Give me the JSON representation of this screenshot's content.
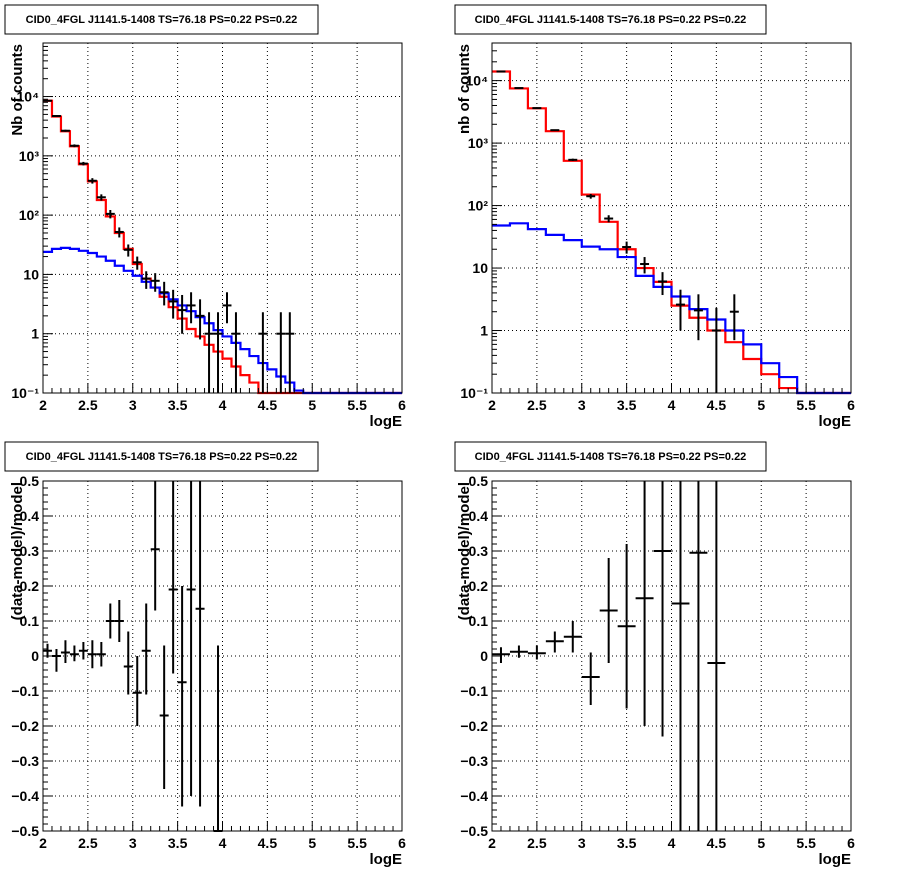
{
  "chart_data": [
    {
      "id": "top-left",
      "type": "histogram-log",
      "title": "CID0_4FGL J1141.5-1408 TS=76.18 PS=0.22 PS=0.22",
      "xlabel": "logE",
      "ylabel": "Nb of counts",
      "xlim": [
        2,
        6
      ],
      "ylim": [
        0.1,
        80000
      ],
      "log_y": true,
      "grid": true,
      "xticks": [
        2,
        2.5,
        3,
        3.5,
        4,
        4.5,
        5,
        5.5,
        6
      ],
      "xtick_labels": [
        "2",
        "2.5",
        "3",
        "3.5",
        "4",
        "4.5",
        "5",
        "5.5",
        "6"
      ],
      "yticks": [
        0.1,
        1,
        10,
        100,
        1000,
        10000
      ],
      "ytick_labels": [
        "10⁻¹",
        "1",
        "10",
        "10²",
        "10³",
        "10⁴"
      ],
      "bin_edges": [
        2.0,
        2.1,
        2.2,
        2.3,
        2.4,
        2.5,
        2.6,
        2.7,
        2.8,
        2.9,
        3.0,
        3.1,
        3.2,
        3.3,
        3.4,
        3.5,
        3.6,
        3.7,
        3.8,
        3.9,
        4.0,
        4.1,
        4.2,
        4.3,
        4.4,
        4.5,
        4.6,
        4.7,
        4.8,
        4.9,
        5.0,
        5.1,
        5.2,
        5.3,
        5.4,
        5.5,
        5.6,
        5.7,
        5.8,
        5.9,
        6.0
      ],
      "series": [
        {
          "style": "step",
          "color": "#ff0000",
          "values": [
            8500,
            4600,
            2600,
            1450,
            720,
            370,
            180,
            95,
            50,
            27,
            15,
            8.5,
            6,
            4.2,
            2.8,
            1.8,
            1.2,
            0.9,
            0.65,
            0.5,
            0.38,
            0.28,
            0.2,
            0.15,
            0.1,
            0.1,
            0.1,
            0.1,
            0.1,
            0.1,
            0.1,
            0.1,
            0.1,
            0.1,
            0.1,
            0.1,
            0.1,
            0.1,
            0.1,
            0.1
          ]
        },
        {
          "style": "step",
          "color": "#0000ff",
          "values": [
            24,
            27,
            28,
            27,
            25,
            23,
            20,
            17,
            14,
            11.5,
            9.5,
            7.5,
            6,
            4.8,
            3.8,
            3.0,
            2.4,
            1.9,
            1.5,
            1.15,
            0.9,
            0.7,
            0.55,
            0.42,
            0.32,
            0.25,
            0.19,
            0.15,
            0.11,
            0.1,
            0.1,
            0.1,
            0.1,
            0.1,
            0.1,
            0.1,
            0.1,
            0.1,
            0.1,
            0.1
          ]
        },
        {
          "style": "errorbar",
          "color": "#000000",
          "points": [
            {
              "x": 2.05,
              "y": 8500,
              "lo": 8320,
              "hi": 8680
            },
            {
              "x": 2.15,
              "y": 4700,
              "lo": 4560,
              "hi": 4840
            },
            {
              "x": 2.25,
              "y": 2650,
              "lo": 2550,
              "hi": 2750
            },
            {
              "x": 2.35,
              "y": 1480,
              "lo": 1400,
              "hi": 1560
            },
            {
              "x": 2.45,
              "y": 740,
              "lo": 690,
              "hi": 790
            },
            {
              "x": 2.55,
              "y": 380,
              "lo": 340,
              "hi": 420
            },
            {
              "x": 2.65,
              "y": 200,
              "lo": 176,
              "hi": 224
            },
            {
              "x": 2.75,
              "y": 105,
              "lo": 88,
              "hi": 122
            },
            {
              "x": 2.85,
              "y": 52,
              "lo": 42,
              "hi": 62
            },
            {
              "x": 2.95,
              "y": 26,
              "lo": 20,
              "hi": 32
            },
            {
              "x": 3.05,
              "y": 16,
              "lo": 12,
              "hi": 20
            },
            {
              "x": 3.15,
              "y": 8.5,
              "lo": 5.7,
              "hi": 11.3
            },
            {
              "x": 3.25,
              "y": 7.8,
              "lo": 5.1,
              "hi": 10.5
            },
            {
              "x": 3.35,
              "y": 5,
              "lo": 3,
              "hi": 7.5
            },
            {
              "x": 3.45,
              "y": 3.5,
              "lo": 1.8,
              "hi": 5.5
            },
            {
              "x": 3.55,
              "y": 2.5,
              "lo": 1,
              "hi": 4.5
            },
            {
              "x": 3.65,
              "y": 3,
              "lo": 1.5,
              "hi": 5
            },
            {
              "x": 3.75,
              "y": 2,
              "lo": 0.8,
              "hi": 3.8
            },
            {
              "x": 3.85,
              "y": 1,
              "lo": 0.1,
              "hi": 2.3
            },
            {
              "x": 3.95,
              "y": 1,
              "lo": 0.1,
              "hi": 2.3
            },
            {
              "x": 4.05,
              "y": 3,
              "lo": 1.5,
              "hi": 5
            },
            {
              "x": 4.15,
              "y": 1,
              "lo": 0.1,
              "hi": 2.3
            },
            {
              "x": 4.45,
              "y": 1,
              "lo": 0.1,
              "hi": 2.3
            },
            {
              "x": 4.65,
              "y": 1,
              "lo": 0.1,
              "hi": 2.3
            },
            {
              "x": 4.75,
              "y": 1,
              "lo": 0.1,
              "hi": 2.3
            }
          ]
        }
      ]
    },
    {
      "id": "top-right",
      "type": "histogram-log",
      "title": "CID0_4FGL J1141.5-1408 TS=76.18 PS=0.22 PS=0.22",
      "xlabel": "logE",
      "ylabel": "nb of counts",
      "xlim": [
        2,
        6
      ],
      "ylim": [
        0.1,
        40000
      ],
      "log_y": true,
      "grid": true,
      "xticks": [
        2,
        2.5,
        3,
        3.5,
        4,
        4.5,
        5,
        5.5,
        6
      ],
      "xtick_labels": [
        "2",
        "2.5",
        "3",
        "3.5",
        "4",
        "4.5",
        "5",
        "5.5",
        "6"
      ],
      "yticks": [
        0.1,
        1,
        10,
        100,
        1000,
        10000
      ],
      "ytick_labels": [
        "10⁻¹",
        "1",
        "10",
        "10²",
        "10³",
        "10⁴"
      ],
      "bin_edges": [
        2.0,
        2.2,
        2.4,
        2.6,
        2.8,
        3.0,
        3.2,
        3.4,
        3.6,
        3.8,
        4.0,
        4.2,
        4.4,
        4.6,
        4.8,
        5.0,
        5.2,
        5.4,
        5.6,
        5.8,
        6.0
      ],
      "series": [
        {
          "style": "step",
          "color": "#ff0000",
          "values": [
            14000,
            7500,
            3600,
            1550,
            520,
            150,
            55,
            20,
            10,
            6,
            2.5,
            1.6,
            1.0,
            0.65,
            0.35,
            0.2,
            0.12,
            0.1,
            0.1,
            0.1
          ]
        },
        {
          "style": "step",
          "color": "#0000ff",
          "values": [
            48,
            52,
            42,
            34,
            28,
            22,
            20,
            15,
            7.5,
            5,
            3.5,
            2.2,
            1.5,
            1.0,
            0.6,
            0.3,
            0.18,
            0.1,
            0.1,
            0.1
          ]
        },
        {
          "style": "errorbar",
          "color": "#000000",
          "points": [
            {
              "x": 2.1,
              "y": 14000,
              "lo": 13880,
              "hi": 14120
            },
            {
              "x": 2.3,
              "y": 7600,
              "lo": 7510,
              "hi": 7690
            },
            {
              "x": 2.5,
              "y": 3630,
              "lo": 3570,
              "hi": 3690
            },
            {
              "x": 2.7,
              "y": 1610,
              "lo": 1570,
              "hi": 1650
            },
            {
              "x": 2.9,
              "y": 540,
              "lo": 517,
              "hi": 563
            },
            {
              "x": 3.1,
              "y": 141,
              "lo": 129,
              "hi": 153
            },
            {
              "x": 3.3,
              "y": 62,
              "lo": 54,
              "hi": 70
            },
            {
              "x": 3.5,
              "y": 21.7,
              "lo": 17,
              "hi": 26.5
            },
            {
              "x": 3.7,
              "y": 11.6,
              "lo": 8.2,
              "hi": 15
            },
            {
              "x": 3.9,
              "y": 6.1,
              "lo": 3.7,
              "hi": 8.6
            },
            {
              "x": 4.1,
              "y": 2.6,
              "lo": 1,
              "hi": 4.5
            },
            {
              "x": 4.3,
              "y": 2.1,
              "lo": 0.7,
              "hi": 3.8
            },
            {
              "x": 4.5,
              "y": 1,
              "lo": 0.1,
              "hi": 2.3
            },
            {
              "x": 4.7,
              "y": 2,
              "lo": 0.7,
              "hi": 3.8
            }
          ]
        }
      ]
    },
    {
      "id": "bottom-left",
      "type": "errorbar",
      "title": "CID0_4FGL J1141.5-1408 TS=76.18 PS=0.22 PS=0.22",
      "xlabel": "logE",
      "ylabel": "(data-model)/model",
      "xlim": [
        2,
        6
      ],
      "ylim": [
        -0.5,
        0.5
      ],
      "log_y": false,
      "grid": true,
      "xticks": [
        2,
        2.5,
        3,
        3.5,
        4,
        4.5,
        5,
        5.5,
        6
      ],
      "xtick_labels": [
        "2",
        "2.5",
        "3",
        "3.5",
        "4",
        "4.5",
        "5",
        "5.5",
        "6"
      ],
      "yticks": [
        -0.5,
        -0.4,
        -0.3,
        -0.2,
        -0.1,
        0,
        0.1,
        0.2,
        0.3,
        0.4,
        0.5
      ],
      "ytick_labels": [
        "−0.5",
        "−0.4",
        "−0.3",
        "−0.2",
        "−0.1",
        "0",
        "0.1",
        "0.2",
        "0.3",
        "0.4",
        "0.5"
      ],
      "series": [
        {
          "style": "errorbar",
          "color": "#000000",
          "xerr": 0.05,
          "points": [
            {
              "x": 2.05,
              "y": 0.015,
              "lo": -0.005,
              "hi": 0.035
            },
            {
              "x": 2.15,
              "y": 0.0,
              "lo": -0.045,
              "hi": 0.02
            },
            {
              "x": 2.25,
              "y": 0.01,
              "lo": -0.02,
              "hi": 0.045
            },
            {
              "x": 2.35,
              "y": 0.005,
              "lo": -0.015,
              "hi": 0.03
            },
            {
              "x": 2.45,
              "y": 0.015,
              "lo": -0.01,
              "hi": 0.04
            },
            {
              "x": 2.55,
              "y": 0.005,
              "lo": -0.035,
              "hi": 0.045
            },
            {
              "x": 2.65,
              "y": 0.005,
              "lo": -0.03,
              "hi": 0.04
            },
            {
              "x": 2.75,
              "y": 0.1,
              "lo": 0.05,
              "hi": 0.15
            },
            {
              "x": 2.85,
              "y": 0.1,
              "lo": 0.04,
              "hi": 0.16
            },
            {
              "x": 2.95,
              "y": -0.03,
              "lo": -0.11,
              "hi": 0.07
            },
            {
              "x": 3.05,
              "y": -0.105,
              "lo": -0.2,
              "hi": 0.0
            },
            {
              "x": 3.15,
              "y": 0.015,
              "lo": -0.11,
              "hi": 0.15
            },
            {
              "x": 3.25,
              "y": 0.305,
              "lo": 0.13,
              "hi": 0.5
            },
            {
              "x": 3.35,
              "y": -0.17,
              "lo": -0.38,
              "hi": 0.03
            },
            {
              "x": 3.45,
              "y": 0.19,
              "lo": -0.05,
              "hi": 0.5
            },
            {
              "x": 3.55,
              "y": -0.075,
              "lo": -0.43,
              "hi": 0.2
            },
            {
              "x": 3.65,
              "y": 0.19,
              "lo": -0.4,
              "hi": 0.5
            },
            {
              "x": 3.75,
              "y": 0.135,
              "lo": -0.43,
              "hi": 0.5
            },
            {
              "x": 3.95,
              "y": -0.5,
              "lo": -0.5,
              "hi": 0.03
            }
          ]
        }
      ]
    },
    {
      "id": "bottom-right",
      "type": "errorbar",
      "title": "CID0_4FGL J1141.5-1408 TS=76.18 PS=0.22 PS=0.22",
      "xlabel": "logE",
      "ylabel": "(data-model)/model",
      "xlim": [
        2,
        6
      ],
      "ylim": [
        -0.5,
        0.5
      ],
      "log_y": false,
      "grid": true,
      "xticks": [
        2,
        2.5,
        3,
        3.5,
        4,
        4.5,
        5,
        5.5,
        6
      ],
      "xtick_labels": [
        "2",
        "2.5",
        "3",
        "3.5",
        "4",
        "4.5",
        "5",
        "5.5",
        "6"
      ],
      "yticks": [
        -0.5,
        -0.4,
        -0.3,
        -0.2,
        -0.1,
        0,
        0.1,
        0.2,
        0.3,
        0.4,
        0.5
      ],
      "ytick_labels": [
        "−0.5",
        "−0.4",
        "−0.3",
        "−0.2",
        "−0.1",
        "0",
        "0.1",
        "0.2",
        "0.3",
        "0.4",
        "0.5"
      ],
      "series": [
        {
          "style": "errorbar",
          "color": "#000000",
          "xerr": 0.1,
          "points": [
            {
              "x": 2.1,
              "y": 0.005,
              "lo": -0.02,
              "hi": 0.025
            },
            {
              "x": 2.3,
              "y": 0.012,
              "lo": -0.005,
              "hi": 0.03
            },
            {
              "x": 2.5,
              "y": 0.008,
              "lo": -0.01,
              "hi": 0.03
            },
            {
              "x": 2.7,
              "y": 0.042,
              "lo": 0.01,
              "hi": 0.07
            },
            {
              "x": 2.9,
              "y": 0.055,
              "lo": 0.01,
              "hi": 0.1
            },
            {
              "x": 3.1,
              "y": -0.06,
              "lo": -0.14,
              "hi": 0.01
            },
            {
              "x": 3.3,
              "y": 0.13,
              "lo": -0.02,
              "hi": 0.28
            },
            {
              "x": 3.5,
              "y": 0.085,
              "lo": -0.15,
              "hi": 0.32
            },
            {
              "x": 3.7,
              "y": 0.165,
              "lo": -0.2,
              "hi": 0.5
            },
            {
              "x": 3.9,
              "y": 0.3,
              "lo": -0.23,
              "hi": 0.5
            },
            {
              "x": 4.1,
              "y": 0.15,
              "lo": -0.5,
              "hi": 0.5
            },
            {
              "x": 4.3,
              "y": 0.295,
              "lo": -0.5,
              "hi": 0.5
            },
            {
              "x": 4.5,
              "y": -0.02,
              "lo": -0.5,
              "hi": 0.5
            }
          ]
        }
      ]
    }
  ]
}
